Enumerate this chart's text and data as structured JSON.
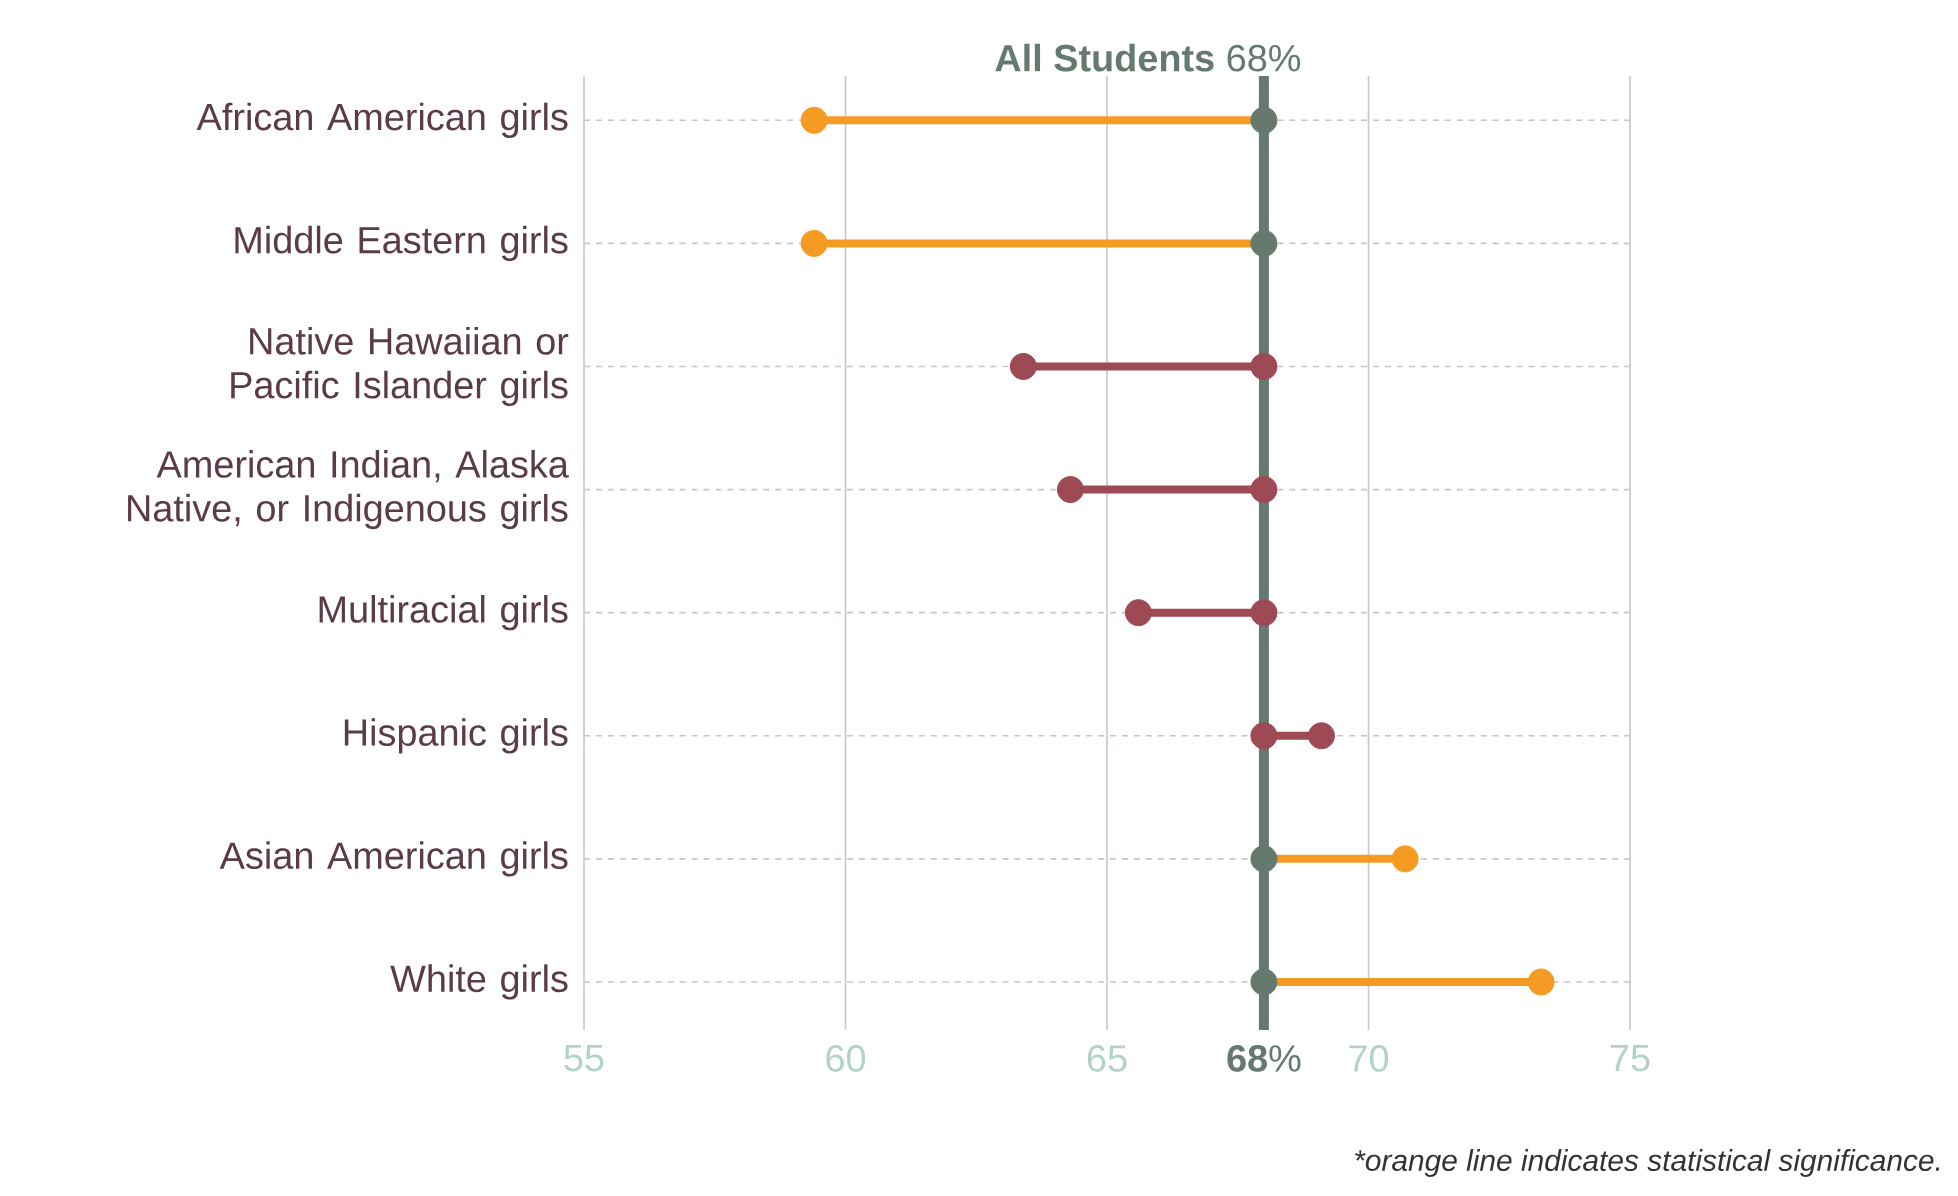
{
  "chart_data": {
    "type": "lollipop",
    "orientation": "horizontal",
    "title": "**All Students** 68%",
    "categories": [
      "African American girls",
      "Middle Eastern girls",
      "Native Hawaiian or Pacific Islander girls",
      "American Indian, Alaska Native, or Indigenous girls",
      "Multiracial girls",
      "Hispanic girls",
      "Asian American girls",
      "White girls"
    ],
    "series": [
      {
        "values": [
          59.4,
          59.4,
          63.4,
          64.3,
          65.6,
          69.1,
          70.7,
          73.3
        ],
        "colors": [
          "#f59b23",
          "#f59b23",
          "#9e4a55",
          "#9e4a55",
          "#9e4a55",
          "#9e4a55",
          "#f59b23",
          "#f59b23"
        ]
      },
      {
        "type": "scatter",
        "values": [
          68,
          68,
          68,
          68,
          68,
          68,
          68,
          68
        ],
        "colors": [
          "#66796f",
          "#66796f",
          "#9e4a55",
          "#9e4a55",
          "#9e4a55",
          "#9e4a55",
          "#66796f",
          "#66796f"
        ]
      }
    ],
    "xlim": [
      55,
      75
    ],
    "xticks": [
      55,
      60,
      65,
      {
        "value": 68,
        "label": "**68**%"
      },
      70,
      75
    ],
    "ref_lines": [
      {
        "axis": "x",
        "value": 68,
        "color": "#66796f"
      }
    ],
    "grid": true,
    "marker": "circle",
    "annotations": [
      "*orange  line indicates statistical significance."
    ]
  }
}
